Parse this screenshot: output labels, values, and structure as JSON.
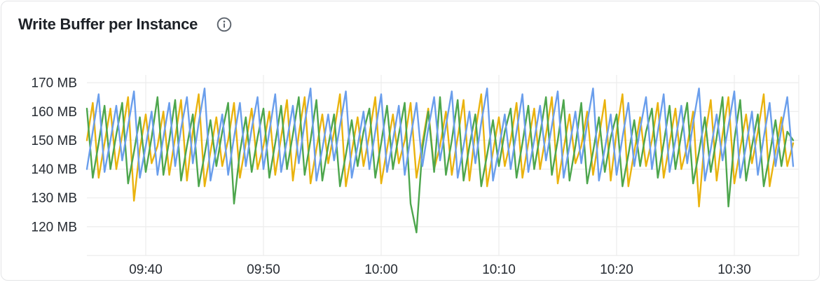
{
  "panel": {
    "title": "Write Buffer per Instance",
    "info_icon": "info-circle"
  },
  "colors": {
    "background": "#ffffff",
    "card_border": "#e3e4e6",
    "grid": "#ececec",
    "axis_text": "#272c33",
    "title_text": "#1d2127",
    "info_icon": "#5c636c",
    "series_blue": "#6a9eec",
    "series_green": "#4da64d",
    "series_yellow": "#eab30e"
  },
  "chart_data": {
    "type": "line",
    "title": "Write Buffer per Instance",
    "unit": "MB",
    "x_start": "09:35",
    "x_end": "10:35",
    "step_minutes": 0.5,
    "ylim": [
      110,
      172.7
    ],
    "y_grid_bottom": 110,
    "grid": "on",
    "legend": "none",
    "x_ticks": [
      {
        "label": "09:40",
        "minute": 5
      },
      {
        "label": "09:50",
        "minute": 15
      },
      {
        "label": "10:00",
        "minute": 25
      },
      {
        "label": "10:10",
        "minute": 35
      },
      {
        "label": "10:20",
        "minute": 45
      },
      {
        "label": "10:30",
        "minute": 55
      }
    ],
    "y_ticks": [
      {
        "label": "170 MB",
        "value": 170
      },
      {
        "label": "160 MB",
        "value": 160
      },
      {
        "label": "150 MB",
        "value": 150
      },
      {
        "label": "140 MB",
        "value": 140
      },
      {
        "label": "130 MB",
        "value": 130
      },
      {
        "label": "120 MB",
        "value": 120
      }
    ],
    "series": [
      {
        "name": "series-yellow",
        "color": "#eab30e",
        "values": [
          150,
          163,
          137,
          149,
          161,
          140,
          152,
          165,
          129,
          147,
          159,
          142,
          148,
          160,
          138,
          151,
          164,
          136,
          153,
          166,
          134,
          146,
          158,
          141,
          150,
          163,
          137,
          149,
          161,
          140,
          148,
          160,
          138,
          151,
          164,
          136,
          152,
          165,
          135,
          147,
          159,
          142,
          153,
          166,
          134,
          146,
          158,
          141,
          152,
          165,
          135,
          147,
          159,
          142,
          150,
          163,
          137,
          149,
          161,
          140,
          148,
          160,
          138,
          151,
          164,
          136,
          153,
          166,
          134,
          146,
          158,
          141,
          150,
          163,
          137,
          149,
          161,
          140,
          152,
          165,
          135,
          147,
          159,
          142,
          148,
          160,
          138,
          151,
          164,
          136,
          153,
          166,
          134,
          146,
          158,
          141,
          150,
          163,
          137,
          149,
          161,
          140,
          148,
          160,
          127,
          151,
          164,
          136,
          152,
          165,
          135,
          147,
          159,
          142,
          153,
          166,
          134,
          146,
          158,
          141,
          149
        ]
      },
      {
        "name": "series-green",
        "color": "#4da64d",
        "values": [
          161,
          137,
          149,
          162,
          140,
          152,
          163,
          135,
          146,
          158,
          139,
          151,
          165,
          138,
          150,
          164,
          136,
          148,
          159,
          134,
          145,
          157,
          141,
          153,
          163,
          128,
          146,
          158,
          139,
          151,
          161,
          137,
          149,
          162,
          140,
          152,
          165,
          138,
          150,
          164,
          136,
          148,
          159,
          134,
          145,
          157,
          141,
          153,
          161,
          137,
          149,
          162,
          140,
          152,
          163,
          128,
          118,
          147,
          160,
          139,
          165,
          138,
          150,
          164,
          136,
          148,
          159,
          134,
          145,
          157,
          141,
          153,
          161,
          137,
          149,
          162,
          140,
          152,
          165,
          138,
          150,
          164,
          136,
          148,
          163,
          135,
          146,
          158,
          139,
          151,
          159,
          134,
          145,
          157,
          141,
          153,
          161,
          137,
          149,
          162,
          140,
          152,
          163,
          135,
          146,
          158,
          139,
          151,
          165,
          127,
          150,
          164,
          136,
          148,
          159,
          134,
          145,
          157,
          141,
          153,
          150
        ]
      },
      {
        "name": "series-blue",
        "color": "#6a9eec",
        "values": [
          140,
          153,
          166,
          139,
          150,
          162,
          143,
          155,
          167,
          137,
          148,
          160,
          138,
          151,
          163,
          141,
          154,
          165,
          142,
          156,
          168,
          136,
          147,
          159,
          138,
          151,
          163,
          141,
          154,
          165,
          140,
          153,
          166,
          139,
          150,
          162,
          142,
          156,
          168,
          136,
          147,
          159,
          143,
          155,
          167,
          137,
          148,
          160,
          140,
          153,
          166,
          139,
          150,
          162,
          138,
          151,
          163,
          141,
          154,
          165,
          143,
          155,
          167,
          137,
          148,
          160,
          142,
          156,
          168,
          136,
          147,
          159,
          140,
          153,
          166,
          139,
          150,
          162,
          143,
          155,
          167,
          137,
          148,
          160,
          142,
          156,
          168,
          136,
          147,
          159,
          138,
          151,
          163,
          141,
          154,
          165,
          140,
          153,
          166,
          139,
          150,
          162,
          142,
          156,
          168,
          136,
          147,
          159,
          143,
          155,
          167,
          137,
          148,
          160,
          138,
          151,
          163,
          141,
          154,
          165,
          141
        ]
      }
    ]
  }
}
